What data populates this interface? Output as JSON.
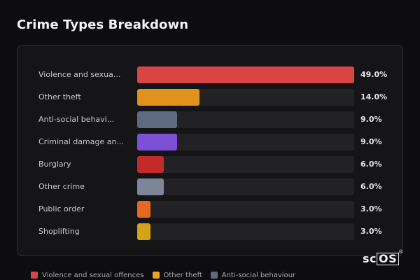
{
  "chart_data": {
    "type": "bar",
    "orientation": "horizontal",
    "title": "Crime Types Breakdown",
    "xlim": [
      0,
      49
    ],
    "categories": [
      "Violence and sexua...",
      "Other theft",
      "Anti-social behavi...",
      "Criminal damage an...",
      "Burglary",
      "Other crime",
      "Public order",
      "Shoplifting"
    ],
    "values": [
      49.0,
      14.0,
      9.0,
      9.0,
      6.0,
      6.0,
      3.0,
      3.0
    ],
    "value_labels": [
      "49.0%",
      "14.0%",
      "9.0%",
      "9.0%",
      "6.0%",
      "6.0%",
      "3.0%",
      "3.0%"
    ],
    "colors": [
      "#d94545",
      "#e0921c",
      "#5e6a80",
      "#7b4fd6",
      "#c42a2a",
      "#7d8699",
      "#e36a1f",
      "#d4a317"
    ],
    "legend": {
      "placement": "bottom",
      "entries": [
        {
          "label": "Violence and sexual offences",
          "color": "#d94545"
        },
        {
          "label": "Other theft",
          "color": "#f0a020"
        },
        {
          "label": "Anti-social behaviour",
          "color": "#5e6a80"
        }
      ]
    }
  },
  "brand": {
    "logo_text_a": "sc",
    "logo_text_b": "OS",
    "logo_reg": "®"
  }
}
